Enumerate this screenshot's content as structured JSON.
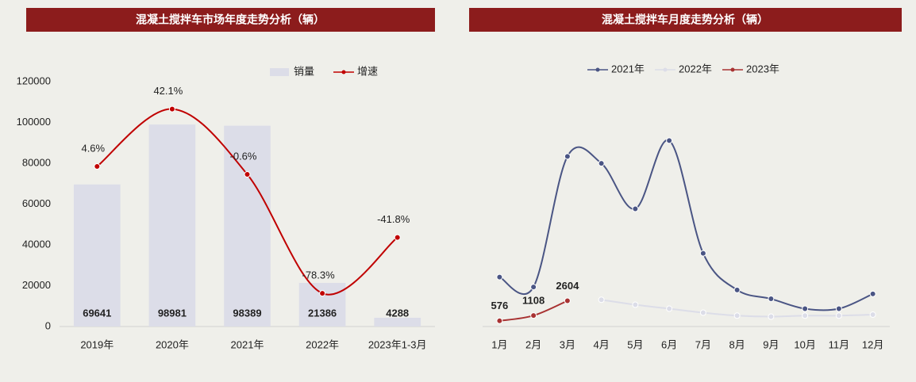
{
  "chart_data": [
    {
      "type": "bar",
      "title": "混凝土搅拌车市场年度走势分析（辆）",
      "categories": [
        "2019年",
        "2020年",
        "2021年",
        "2022年",
        "2023年1-3月"
      ],
      "series": [
        {
          "name": "销量",
          "color": "#dcdde8",
          "values": [
            69641,
            98981,
            98389,
            21386,
            4288
          ]
        },
        {
          "name": "增速",
          "color": "#c00000",
          "axis": "y2",
          "values": [
            4.6,
            42.1,
            -0.6,
            -78.3,
            -41.8
          ],
          "value_labels": [
            "4.6%",
            "42.1%",
            "-0.6%",
            "-78.3%",
            "-41.8%"
          ]
        }
      ],
      "ylim": [
        0,
        120000
      ],
      "yticks": [
        0,
        20000,
        40000,
        60000,
        80000,
        100000,
        120000
      ],
      "y2lim": [
        -100,
        60
      ],
      "legend": "top"
    },
    {
      "type": "line",
      "title": "混凝土搅拌车月度走势分析（辆）",
      "categories": [
        "1月",
        "2月",
        "3月",
        "4月",
        "5月",
        "6月",
        "7月",
        "8月",
        "9月",
        "10月",
        "11月",
        "12月"
      ],
      "series": [
        {
          "name": "2021年",
          "color": "#4a5584",
          "values": [
            5000,
            4000,
            17200,
            16500,
            11900,
            18800,
            7400,
            3700,
            2800,
            1800,
            1800,
            3300
          ]
        },
        {
          "name": "2022年",
          "color": "#dcdde8",
          "values": [
            null,
            null,
            null,
            2700,
            2200,
            1800,
            1400,
            1100,
            1000,
            1100,
            1100,
            1200
          ]
        },
        {
          "name": "2023年",
          "color": "#a83232",
          "values": [
            576,
            1108,
            2604,
            null,
            null,
            null,
            null,
            null,
            null,
            null,
            null,
            null
          ],
          "labeled": true
        }
      ],
      "ylim": [
        0,
        25000
      ],
      "legend": "top"
    }
  ]
}
